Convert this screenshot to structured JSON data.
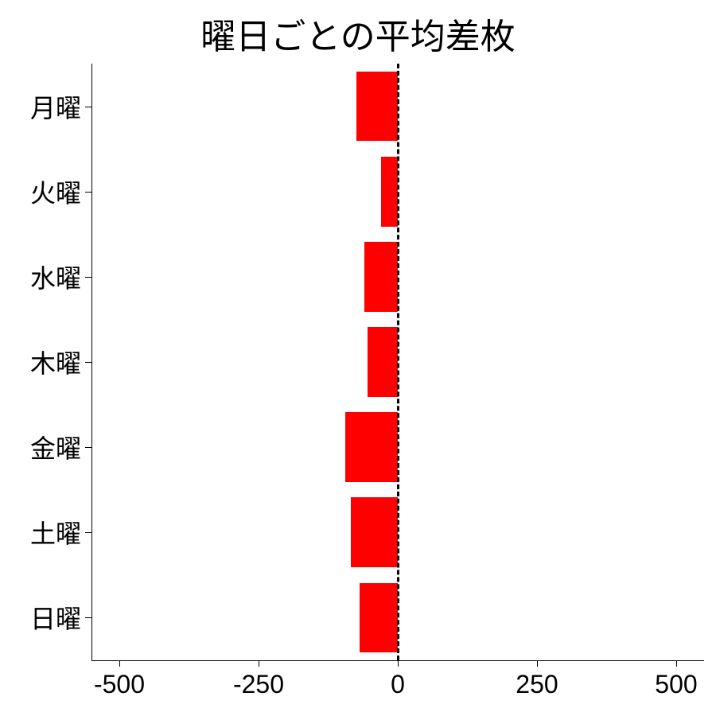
{
  "chart": {
    "type": "bar-horizontal",
    "title": "曜日ごとの平均差枚",
    "title_fontsize": 44,
    "background_color": "#ffffff",
    "x": {
      "min": -550,
      "max": 550,
      "ticks": [
        -500,
        -250,
        0,
        250,
        500
      ],
      "tick_labels": [
        "-500",
        "-250",
        "0",
        "250",
        "500"
      ],
      "label_fontsize": 32
    },
    "y": {
      "categories": [
        "月曜",
        "火曜",
        "水曜",
        "木曜",
        "金曜",
        "土曜",
        "日曜"
      ],
      "label_fontsize": 32
    },
    "zero_line": {
      "value": 0,
      "style": "dashed",
      "color": "#000000",
      "width": 3
    },
    "bar_color": "#ff0000",
    "bar_fill_ratio": 0.82,
    "values": [
      -75,
      -30,
      -60,
      -55,
      -95,
      -85,
      -68
    ]
  }
}
